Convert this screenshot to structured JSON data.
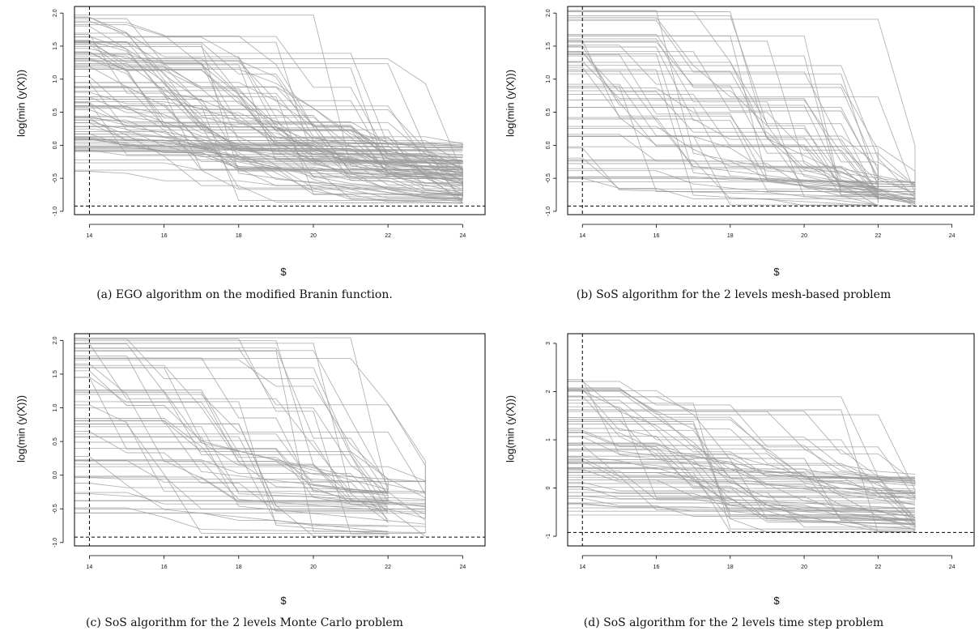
{
  "chart_data": [
    {
      "type": "line",
      "id": "a",
      "caption": "(a) EGO algorithm on the modified Branin function.",
      "xlabel": "$",
      "ylabel": "log(min (y(X)))",
      "xlim": [
        13.6,
        24.6
      ],
      "ylim": [
        -1.05,
        2.1
      ],
      "xticks": [
        "14",
        "16",
        "18",
        "20",
        "22",
        "24"
      ],
      "yticks": [
        "-1.0",
        "-0.5",
        "0.0",
        "0.5",
        "1.0",
        "1.5",
        "2.0"
      ],
      "vline_x": 14,
      "hline_y": -0.92,
      "n_runs": 100,
      "start_y_range": [
        -0.4,
        2.05
      ],
      "final_y_range": [
        -0.88,
        0.05
      ],
      "end_x": [
        24
      ],
      "drop_steps": 9,
      "series_color": "#9a9a9a"
    },
    {
      "type": "line",
      "id": "b",
      "caption": "(b) SoS algorithm for the 2 levels mesh-based problem",
      "xlabel": "$",
      "ylabel": "log(min (y(X)))",
      "xlim": [
        13.6,
        24.6
      ],
      "ylim": [
        -1.05,
        2.1
      ],
      "xticks": [
        "14",
        "16",
        "18",
        "20",
        "22",
        "24"
      ],
      "yticks": [
        "-1.0",
        "-0.5",
        "0.0",
        "0.5",
        "1.0",
        "1.5",
        "2.0"
      ],
      "vline_x": 14,
      "hline_y": -0.92,
      "n_runs": 60,
      "start_y_range": [
        -0.6,
        2.05
      ],
      "final_y_range": [
        -0.92,
        -0.55
      ],
      "end_x": [
        22,
        23
      ],
      "drop_steps": 3,
      "series_color": "#9a9a9a"
    },
    {
      "type": "line",
      "id": "c",
      "caption": "(c) SoS algorithm for the 2 levels Monte Carlo problem",
      "xlabel": "$",
      "ylabel": "log(min (y(X)))",
      "xlim": [
        13.6,
        24.6
      ],
      "ylim": [
        -1.05,
        2.1
      ],
      "xticks": [
        "14",
        "16",
        "18",
        "20",
        "22",
        "24"
      ],
      "yticks": [
        "-1.0",
        "-0.5",
        "0.0",
        "0.5",
        "1.0",
        "1.5",
        "2.0"
      ],
      "vline_x": 14,
      "hline_y": -0.92,
      "n_runs": 60,
      "start_y_range": [
        -0.6,
        2.05
      ],
      "final_y_range": [
        -0.92,
        -0.05
      ],
      "end_x": [
        22,
        23
      ],
      "drop_steps": 3,
      "series_color": "#9a9a9a"
    },
    {
      "type": "line",
      "id": "d",
      "caption": "(d) SoS algorithm for the 2 levels time step problem",
      "xlabel": "$",
      "ylabel": "log(min (y(X)))",
      "xlim": [
        13.6,
        24.6
      ],
      "ylim": [
        -1.2,
        3.2
      ],
      "xticks": [
        "14",
        "16",
        "18",
        "20",
        "22",
        "24"
      ],
      "yticks": [
        "-1",
        "0",
        "1",
        "2",
        "3"
      ],
      "vline_x": 14,
      "hline_y": -0.92,
      "n_runs": 70,
      "start_y_range": [
        -0.6,
        2.25
      ],
      "final_y_range": [
        -0.92,
        0.3
      ],
      "end_x": [
        23
      ],
      "drop_steps": 5,
      "series_color": "#9a9a9a"
    }
  ]
}
